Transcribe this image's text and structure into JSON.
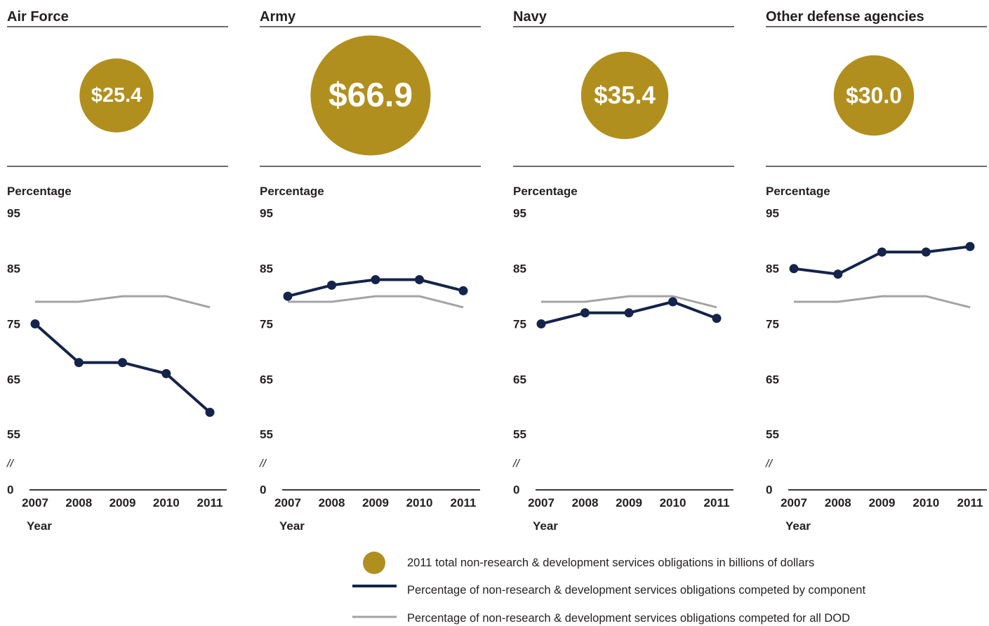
{
  "colors": {
    "bubble": "#b18f1f",
    "component_line": "#14244a",
    "dod_line": "#a3a3a3",
    "rule": "#3a3a3a",
    "text": "#231f20"
  },
  "chart_data": [
    {
      "type": "line",
      "title": "Air Force",
      "obligation_label": "$25.4",
      "obligation_billions": 25.4,
      "ylabel": "Percentage",
      "xlabel": "Year",
      "y_ticks": [
        "95",
        "85",
        "75",
        "65",
        "55",
        "0"
      ],
      "axis_break": "//",
      "ylim": [
        55,
        95
      ],
      "categories": [
        "2007",
        "2008",
        "2009",
        "2010",
        "2011"
      ],
      "series": [
        {
          "values": [
            75,
            68,
            68,
            66,
            59
          ]
        },
        {
          "values": [
            79,
            79,
            80,
            80,
            78
          ]
        }
      ]
    },
    {
      "type": "line",
      "title": "Army",
      "obligation_label": "$66.9",
      "obligation_billions": 66.9,
      "ylabel": "Percentage",
      "xlabel": "Year",
      "y_ticks": [
        "95",
        "85",
        "75",
        "65",
        "55",
        "0"
      ],
      "axis_break": "//",
      "ylim": [
        55,
        95
      ],
      "categories": [
        "2007",
        "2008",
        "2009",
        "2010",
        "2011"
      ],
      "series": [
        {
          "values": [
            80,
            82,
            83,
            83,
            81
          ]
        },
        {
          "values": [
            79,
            79,
            80,
            80,
            78
          ]
        }
      ]
    },
    {
      "type": "line",
      "title": "Navy",
      "obligation_label": "$35.4",
      "obligation_billions": 35.4,
      "ylabel": "Percentage",
      "xlabel": "Year",
      "y_ticks": [
        "95",
        "85",
        "75",
        "65",
        "55",
        "0"
      ],
      "axis_break": "//",
      "ylim": [
        55,
        95
      ],
      "categories": [
        "2007",
        "2008",
        "2009",
        "2010",
        "2011"
      ],
      "series": [
        {
          "values": [
            75,
            77,
            77,
            79,
            76
          ]
        },
        {
          "values": [
            79,
            79,
            80,
            80,
            78
          ]
        }
      ]
    },
    {
      "type": "line",
      "title": "Other defense agencies",
      "obligation_label": "$30.0",
      "obligation_billions": 30.0,
      "ylabel": "Percentage",
      "xlabel": "Year",
      "y_ticks": [
        "95",
        "85",
        "75",
        "65",
        "55",
        "0"
      ],
      "axis_break": "//",
      "ylim": [
        55,
        95
      ],
      "categories": [
        "2007",
        "2008",
        "2009",
        "2010",
        "2011"
      ],
      "series": [
        {
          "values": [
            85,
            84,
            88,
            88,
            89
          ]
        },
        {
          "values": [
            79,
            79,
            80,
            80,
            78
          ]
        }
      ]
    }
  ],
  "legend": {
    "items": [
      {
        "kind": "bubble",
        "label": "2011 total non-research & development services obligations in billions of dollars"
      },
      {
        "kind": "component_line",
        "label": "Percentage of non-research & development services obligations competed by component"
      },
      {
        "kind": "dod_line",
        "label": "Percentage of non-research & development services obligations competed for all DOD"
      }
    ]
  }
}
